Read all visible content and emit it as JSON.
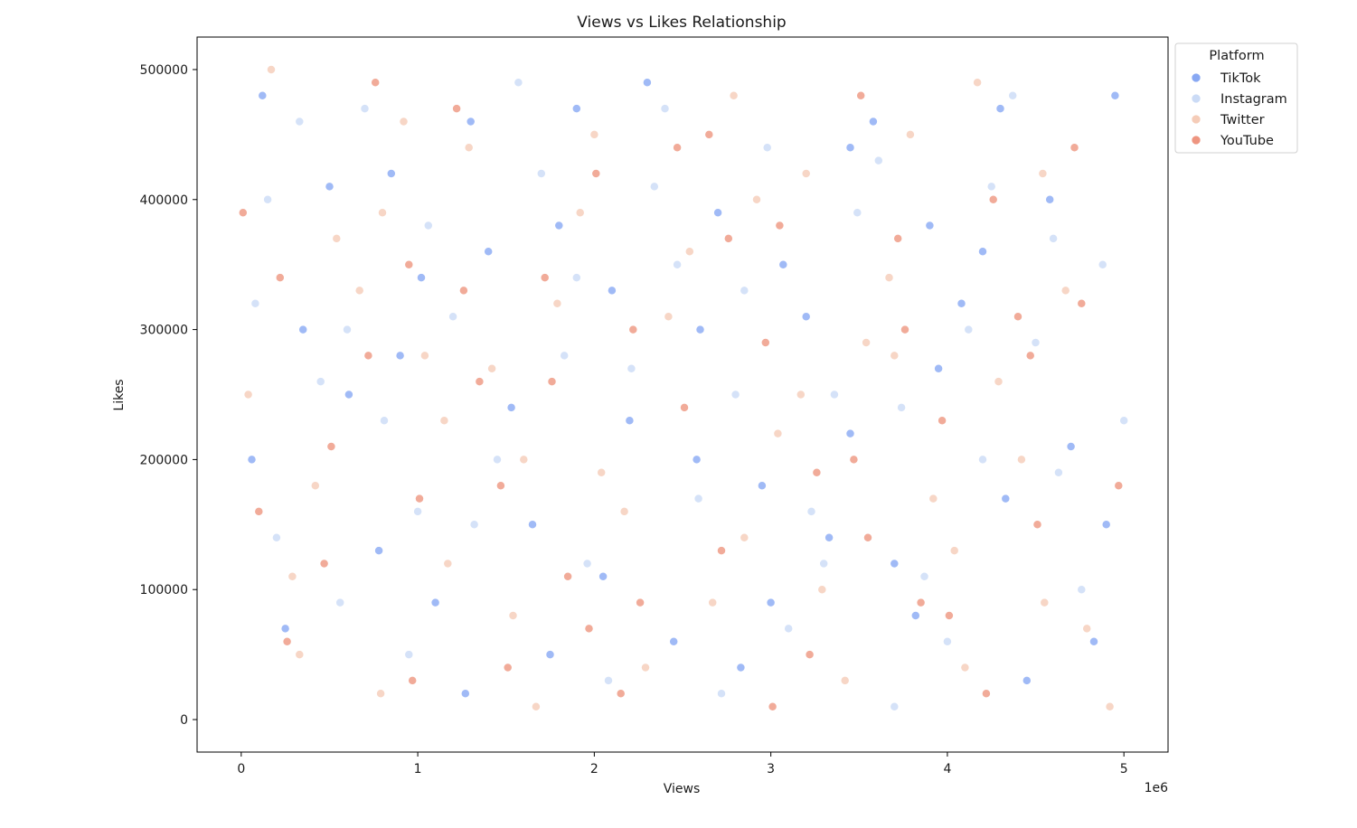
{
  "chart_data": {
    "type": "scatter",
    "title": "Views vs Likes Relationship",
    "xlabel": "Views",
    "ylabel": "Likes",
    "x_offset_text": "1e6",
    "xlim": [
      -250000,
      5250000
    ],
    "ylim": [
      -25000,
      525000
    ],
    "x_ticks": [
      0,
      1000000,
      2000000,
      3000000,
      4000000,
      5000000
    ],
    "x_tick_labels": [
      "0",
      "1",
      "2",
      "3",
      "4",
      "5"
    ],
    "y_ticks": [
      0,
      100000,
      200000,
      300000,
      400000,
      500000
    ],
    "y_tick_labels": [
      "0",
      "100000",
      "200000",
      "300000",
      "400000",
      "500000"
    ],
    "grid": false,
    "legend": {
      "title": "Platform",
      "placement": "top-right outside"
    },
    "series": [
      {
        "name": "TikTok",
        "color": "#7b9ff2",
        "points": [
          [
            120000,
            480000
          ],
          [
            350000,
            300000
          ],
          [
            610000,
            250000
          ],
          [
            850000,
            420000
          ],
          [
            1100000,
            90000
          ],
          [
            1400000,
            360000
          ],
          [
            1650000,
            150000
          ],
          [
            1900000,
            470000
          ],
          [
            2200000,
            230000
          ],
          [
            2450000,
            60000
          ],
          [
            2700000,
            390000
          ],
          [
            2950000,
            180000
          ],
          [
            3200000,
            310000
          ],
          [
            3450000,
            440000
          ],
          [
            3700000,
            120000
          ],
          [
            3950000,
            270000
          ],
          [
            4200000,
            360000
          ],
          [
            4450000,
            30000
          ],
          [
            4700000,
            210000
          ],
          [
            4950000,
            480000
          ],
          [
            250000,
            70000
          ],
          [
            500000,
            410000
          ],
          [
            780000,
            130000
          ],
          [
            1020000,
            340000
          ],
          [
            1270000,
            20000
          ],
          [
            1530000,
            240000
          ],
          [
            1800000,
            380000
          ],
          [
            2050000,
            110000
          ],
          [
            2300000,
            490000
          ],
          [
            2580000,
            200000
          ],
          [
            2830000,
            40000
          ],
          [
            3070000,
            350000
          ],
          [
            3330000,
            140000
          ],
          [
            3580000,
            460000
          ],
          [
            3820000,
            80000
          ],
          [
            4080000,
            320000
          ],
          [
            4330000,
            170000
          ],
          [
            4580000,
            400000
          ],
          [
            4830000,
            60000
          ],
          [
            60000,
            200000
          ],
          [
            900000,
            280000
          ],
          [
            1750000,
            50000
          ],
          [
            2600000,
            300000
          ],
          [
            3450000,
            220000
          ],
          [
            4300000,
            470000
          ],
          [
            4900000,
            150000
          ],
          [
            1300000,
            460000
          ],
          [
            2100000,
            330000
          ],
          [
            3000000,
            90000
          ],
          [
            3900000,
            380000
          ]
        ]
      },
      {
        "name": "Instagram",
        "color": "#c5d7f5",
        "points": [
          [
            80000,
            320000
          ],
          [
            330000,
            460000
          ],
          [
            560000,
            90000
          ],
          [
            810000,
            230000
          ],
          [
            1060000,
            380000
          ],
          [
            1320000,
            150000
          ],
          [
            1570000,
            490000
          ],
          [
            1830000,
            280000
          ],
          [
            2080000,
            30000
          ],
          [
            2340000,
            410000
          ],
          [
            2590000,
            170000
          ],
          [
            2850000,
            330000
          ],
          [
            3100000,
            70000
          ],
          [
            3360000,
            250000
          ],
          [
            3610000,
            430000
          ],
          [
            3870000,
            110000
          ],
          [
            4120000,
            300000
          ],
          [
            4370000,
            480000
          ],
          [
            4630000,
            190000
          ],
          [
            4880000,
            350000
          ],
          [
            200000,
            140000
          ],
          [
            450000,
            260000
          ],
          [
            700000,
            470000
          ],
          [
            950000,
            50000
          ],
          [
            1200000,
            310000
          ],
          [
            1450000,
            200000
          ],
          [
            1700000,
            420000
          ],
          [
            1960000,
            120000
          ],
          [
            2210000,
            270000
          ],
          [
            2470000,
            350000
          ],
          [
            2720000,
            20000
          ],
          [
            2980000,
            440000
          ],
          [
            3230000,
            160000
          ],
          [
            3490000,
            390000
          ],
          [
            3740000,
            240000
          ],
          [
            4000000,
            60000
          ],
          [
            4250000,
            410000
          ],
          [
            4500000,
            290000
          ],
          [
            4760000,
            100000
          ],
          [
            5000000,
            230000
          ],
          [
            150000,
            400000
          ],
          [
            1000000,
            160000
          ],
          [
            1900000,
            340000
          ],
          [
            2800000,
            250000
          ],
          [
            3700000,
            10000
          ],
          [
            4600000,
            370000
          ],
          [
            600000,
            300000
          ],
          [
            2400000,
            470000
          ],
          [
            3300000,
            120000
          ],
          [
            4200000,
            200000
          ]
        ]
      },
      {
        "name": "Twitter",
        "color": "#f4c6b0",
        "points": [
          [
            40000,
            250000
          ],
          [
            290000,
            110000
          ],
          [
            540000,
            370000
          ],
          [
            790000,
            20000
          ],
          [
            1040000,
            280000
          ],
          [
            1290000,
            440000
          ],
          [
            1540000,
            80000
          ],
          [
            1790000,
            320000
          ],
          [
            2040000,
            190000
          ],
          [
            2290000,
            40000
          ],
          [
            2540000,
            360000
          ],
          [
            2790000,
            480000
          ],
          [
            3040000,
            220000
          ],
          [
            3290000,
            100000
          ],
          [
            3540000,
            290000
          ],
          [
            3790000,
            450000
          ],
          [
            4040000,
            130000
          ],
          [
            4290000,
            260000
          ],
          [
            4540000,
            420000
          ],
          [
            4790000,
            70000
          ],
          [
            170000,
            500000
          ],
          [
            420000,
            180000
          ],
          [
            670000,
            330000
          ],
          [
            920000,
            460000
          ],
          [
            1170000,
            120000
          ],
          [
            1420000,
            270000
          ],
          [
            1670000,
            10000
          ],
          [
            1920000,
            390000
          ],
          [
            2170000,
            160000
          ],
          [
            2420000,
            310000
          ],
          [
            2670000,
            90000
          ],
          [
            2920000,
            400000
          ],
          [
            3170000,
            250000
          ],
          [
            3420000,
            30000
          ],
          [
            3670000,
            340000
          ],
          [
            3920000,
            170000
          ],
          [
            4170000,
            490000
          ],
          [
            4420000,
            200000
          ],
          [
            4670000,
            330000
          ],
          [
            4920000,
            10000
          ],
          [
            330000,
            50000
          ],
          [
            1150000,
            230000
          ],
          [
            2000000,
            450000
          ],
          [
            2850000,
            140000
          ],
          [
            3700000,
            280000
          ],
          [
            4550000,
            90000
          ],
          [
            800000,
            390000
          ],
          [
            1600000,
            200000
          ],
          [
            3200000,
            420000
          ],
          [
            4100000,
            40000
          ]
        ]
      },
      {
        "name": "YouTube",
        "color": "#ec8a72",
        "points": [
          [
            10000,
            390000
          ],
          [
            260000,
            60000
          ],
          [
            510000,
            210000
          ],
          [
            760000,
            490000
          ],
          [
            1010000,
            170000
          ],
          [
            1260000,
            330000
          ],
          [
            1510000,
            40000
          ],
          [
            1760000,
            260000
          ],
          [
            2010000,
            420000
          ],
          [
            2260000,
            90000
          ],
          [
            2510000,
            240000
          ],
          [
            2760000,
            370000
          ],
          [
            3010000,
            10000
          ],
          [
            3260000,
            190000
          ],
          [
            3510000,
            480000
          ],
          [
            3760000,
            300000
          ],
          [
            4010000,
            80000
          ],
          [
            4260000,
            400000
          ],
          [
            4510000,
            150000
          ],
          [
            4760000,
            320000
          ],
          [
            220000,
            340000
          ],
          [
            470000,
            120000
          ],
          [
            720000,
            280000
          ],
          [
            970000,
            30000
          ],
          [
            1220000,
            470000
          ],
          [
            1470000,
            180000
          ],
          [
            1720000,
            340000
          ],
          [
            1970000,
            70000
          ],
          [
            2220000,
            300000
          ],
          [
            2470000,
            440000
          ],
          [
            2720000,
            130000
          ],
          [
            2970000,
            290000
          ],
          [
            3220000,
            50000
          ],
          [
            3470000,
            200000
          ],
          [
            3720000,
            370000
          ],
          [
            3970000,
            230000
          ],
          [
            4220000,
            20000
          ],
          [
            4470000,
            280000
          ],
          [
            4720000,
            440000
          ],
          [
            4970000,
            180000
          ],
          [
            100000,
            160000
          ],
          [
            950000,
            350000
          ],
          [
            1850000,
            110000
          ],
          [
            2650000,
            450000
          ],
          [
            3550000,
            140000
          ],
          [
            4400000,
            310000
          ],
          [
            1350000,
            260000
          ],
          [
            2150000,
            20000
          ],
          [
            3050000,
            380000
          ],
          [
            3850000,
            90000
          ]
        ]
      }
    ]
  }
}
